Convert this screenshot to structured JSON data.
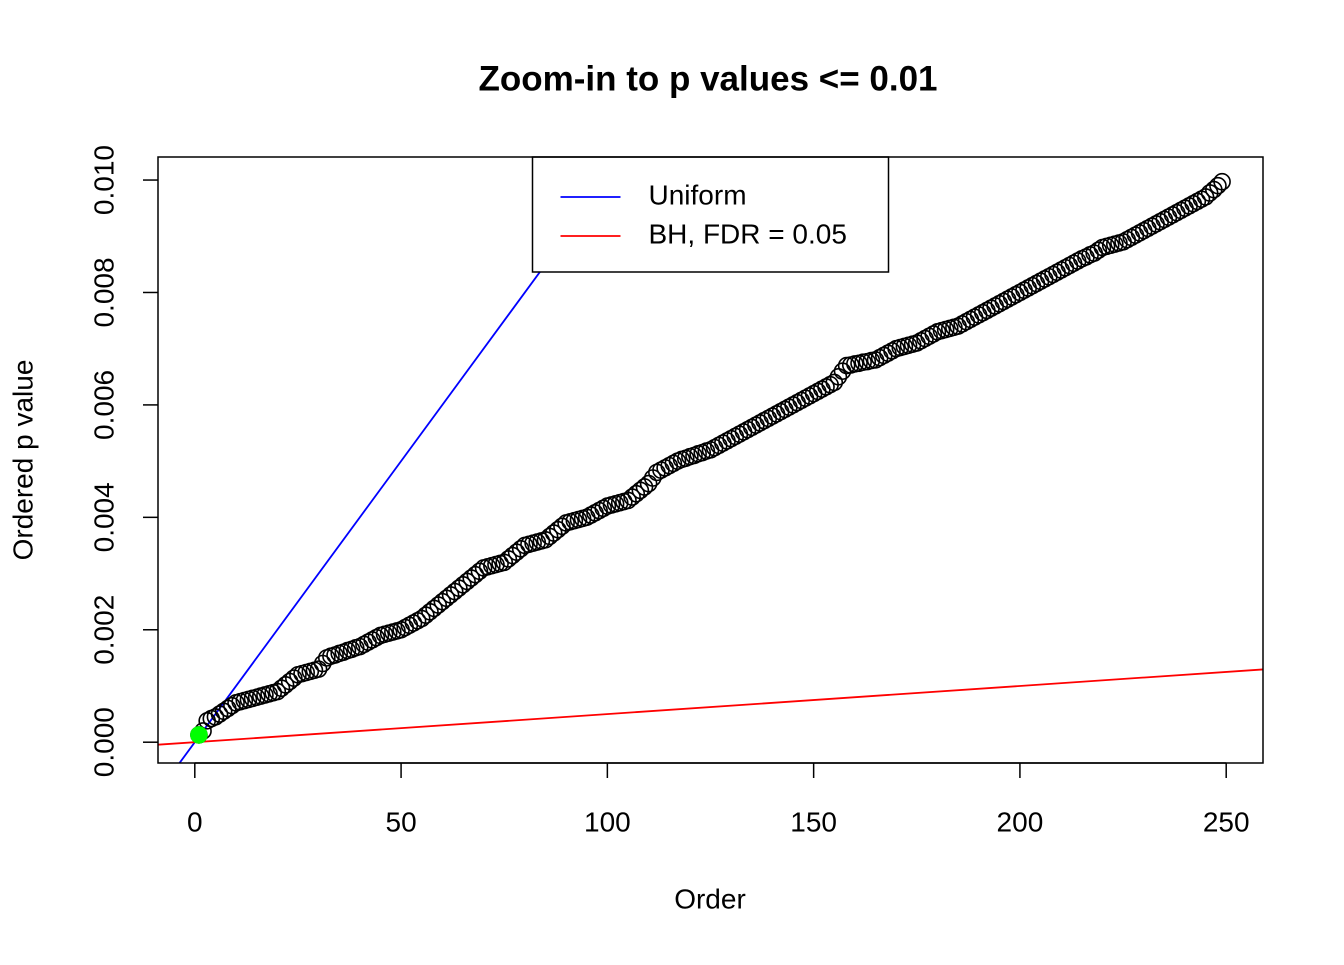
{
  "chart_data": {
    "type": "scatter",
    "title": "Zoom-in to p values <= 0.01",
    "x_label": "Order",
    "y_label": "Ordered p value",
    "xlim": [
      -8.92,
      258.92
    ],
    "ylim": [
      -0.00037,
      0.01041
    ],
    "xticks": [
      0,
      50,
      100,
      150,
      200,
      250
    ],
    "yticks": [
      {
        "value": 0,
        "label": "0.000"
      },
      {
        "value": 0.002,
        "label": "0.002"
      },
      {
        "value": 0.004,
        "label": "0.004"
      },
      {
        "value": 0.006,
        "label": "0.006"
      },
      {
        "value": 0.008,
        "label": "0.008"
      },
      {
        "value": 0.01,
        "label": "0.010"
      }
    ],
    "legend": "top",
    "series": [
      {
        "color": "#000000",
        "filled": false,
        "x": [
          1,
          2,
          3,
          4,
          5,
          6,
          7,
          8,
          9,
          10,
          11,
          12,
          13,
          14,
          15,
          16,
          17,
          18,
          19,
          20,
          21,
          22,
          23,
          24,
          25,
          26,
          27,
          28,
          29,
          30,
          31,
          32,
          33,
          34,
          35,
          36,
          37,
          38,
          39,
          40,
          41,
          42,
          43,
          44,
          45,
          46,
          47,
          48,
          49,
          50,
          51,
          52,
          53,
          54,
          55,
          56,
          57,
          58,
          59,
          60,
          61,
          62,
          63,
          64,
          65,
          66,
          67,
          68,
          69,
          70,
          71,
          72,
          73,
          74,
          75,
          76,
          77,
          78,
          79,
          80,
          81,
          82,
          83,
          84,
          85,
          86,
          87,
          88,
          89,
          90,
          91,
          92,
          93,
          94,
          95,
          96,
          97,
          98,
          99,
          100,
          101,
          102,
          103,
          104,
          105,
          106,
          107,
          108,
          109,
          110,
          111,
          112,
          113,
          114,
          115,
          116,
          117,
          118,
          119,
          120,
          121,
          122,
          123,
          124,
          125,
          126,
          127,
          128,
          129,
          130,
          131,
          132,
          133,
          134,
          135,
          136,
          137,
          138,
          139,
          140,
          141,
          142,
          143,
          144,
          145,
          146,
          147,
          148,
          149,
          150,
          151,
          152,
          153,
          154,
          155,
          156,
          157,
          158,
          159,
          160,
          161,
          162,
          163,
          164,
          165,
          166,
          167,
          168,
          169,
          170,
          171,
          172,
          173,
          174,
          175,
          176,
          177,
          178,
          179,
          180,
          181,
          182,
          183,
          184,
          185,
          186,
          187,
          188,
          189,
          190,
          191,
          192,
          193,
          194,
          195,
          196,
          197,
          198,
          199,
          200,
          201,
          202,
          203,
          204,
          205,
          206,
          207,
          208,
          209,
          210,
          211,
          212,
          213,
          214,
          215,
          216,
          217,
          218,
          219,
          220,
          221,
          222,
          223,
          224,
          225,
          226,
          227,
          228,
          229,
          230,
          231,
          232,
          233,
          234,
          235,
          236,
          237,
          238,
          239,
          240,
          241,
          242,
          243,
          244,
          245,
          246,
          247,
          248,
          249
        ],
        "values": [
          0.00013,
          0.0002,
          0.00038,
          0.00042,
          0.00045,
          0.0005,
          0.00055,
          0.0006,
          0.00065,
          0.0007,
          0.00072,
          0.00074,
          0.00076,
          0.00078,
          0.0008,
          0.00082,
          0.00084,
          0.00086,
          0.00088,
          0.0009,
          0.00096,
          0.00102,
          0.00108,
          0.00114,
          0.0012,
          0.00122,
          0.00124,
          0.00126,
          0.00128,
          0.0013,
          0.0014,
          0.0015,
          0.00153,
          0.00155,
          0.00158,
          0.0016,
          0.00163,
          0.00165,
          0.00168,
          0.0017,
          0.00174,
          0.00178,
          0.00182,
          0.00186,
          0.0019,
          0.00192,
          0.00194,
          0.00196,
          0.00198,
          0.002,
          0.00204,
          0.00208,
          0.00212,
          0.00216,
          0.0022,
          0.00226,
          0.00232,
          0.00238,
          0.00244,
          0.0025,
          0.00256,
          0.00262,
          0.00268,
          0.00274,
          0.0028,
          0.00286,
          0.00292,
          0.00298,
          0.00304,
          0.0031,
          0.00312,
          0.00314,
          0.00316,
          0.00318,
          0.0032,
          0.00326,
          0.00332,
          0.00338,
          0.00344,
          0.0035,
          0.00352,
          0.00354,
          0.00356,
          0.00358,
          0.0036,
          0.00366,
          0.00372,
          0.00378,
          0.00384,
          0.0039,
          0.00392,
          0.00394,
          0.00396,
          0.00398,
          0.004,
          0.00404,
          0.00408,
          0.00412,
          0.00416,
          0.0042,
          0.00422,
          0.00424,
          0.00426,
          0.00428,
          0.0043,
          0.00436,
          0.00442,
          0.00448,
          0.00454,
          0.0046,
          0.0047,
          0.0048,
          0.00484,
          0.00488,
          0.00492,
          0.00496,
          0.005,
          0.00503,
          0.00505,
          0.00508,
          0.0051,
          0.00513,
          0.00515,
          0.00518,
          0.0052,
          0.00524,
          0.00528,
          0.00532,
          0.00536,
          0.0054,
          0.00544,
          0.00548,
          0.00552,
          0.00556,
          0.0056,
          0.00564,
          0.00568,
          0.00572,
          0.00576,
          0.0058,
          0.00584,
          0.00588,
          0.00592,
          0.00596,
          0.006,
          0.00604,
          0.00608,
          0.00612,
          0.00616,
          0.0062,
          0.00624,
          0.00628,
          0.00632,
          0.00636,
          0.0064,
          0.0065,
          0.0066,
          0.0067,
          0.00671,
          0.00673,
          0.00674,
          0.00676,
          0.00677,
          0.00679,
          0.0068,
          0.00684,
          0.00688,
          0.00692,
          0.00696,
          0.007,
          0.00702,
          0.00704,
          0.00706,
          0.00708,
          0.0071,
          0.00714,
          0.00718,
          0.00722,
          0.00726,
          0.0073,
          0.00732,
          0.00734,
          0.00736,
          0.00738,
          0.0074,
          0.00744,
          0.00748,
          0.00752,
          0.00756,
          0.0076,
          0.00764,
          0.00768,
          0.00772,
          0.00776,
          0.0078,
          0.00784,
          0.00788,
          0.00792,
          0.00796,
          0.008,
          0.00804,
          0.00808,
          0.00812,
          0.00816,
          0.0082,
          0.00824,
          0.00828,
          0.00832,
          0.00836,
          0.0084,
          0.00844,
          0.00848,
          0.00852,
          0.00856,
          0.0086,
          0.00863,
          0.00867,
          0.0087,
          0.00875,
          0.0088,
          0.00882,
          0.00884,
          0.00886,
          0.00888,
          0.0089,
          0.00894,
          0.00898,
          0.00902,
          0.00906,
          0.0091,
          0.00914,
          0.00918,
          0.00922,
          0.00926,
          0.0093,
          0.00934,
          0.00938,
          0.00942,
          0.00946,
          0.0095,
          0.00954,
          0.00958,
          0.00962,
          0.00966,
          0.0097,
          0.00977,
          0.00983,
          0.0099,
          0.00997
        ]
      },
      {
        "color": "#00ff00",
        "filled": true,
        "x": [
          1
        ],
        "values": [
          0.00013
        ]
      }
    ],
    "lines": [
      {
        "name": "Uniform",
        "color": "#0000ff",
        "slope": 0.0001,
        "intercept": 0
      },
      {
        "name": "BH, FDR = 0.05",
        "color": "#ff0000",
        "slope": 5e-06,
        "intercept": 0
      }
    ]
  }
}
